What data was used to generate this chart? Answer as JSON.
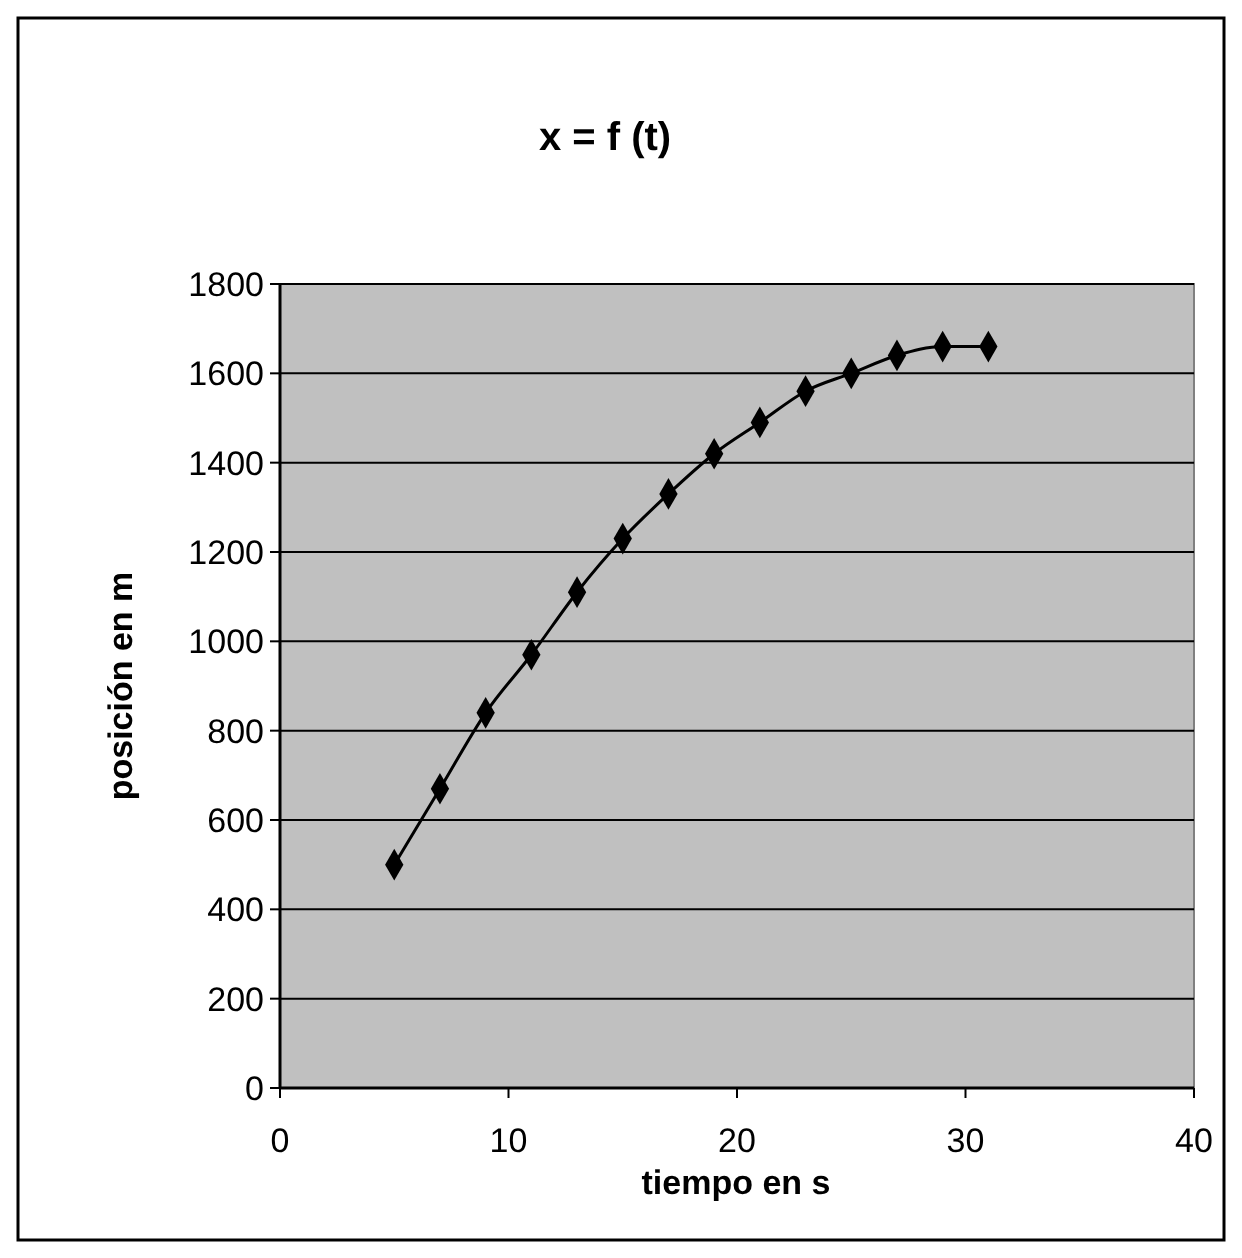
{
  "chart_data": {
    "type": "line",
    "title": "x = f (t)",
    "xlabel": "tiempo en s",
    "ylabel": "posición en m",
    "x": [
      5,
      7,
      9,
      11,
      13,
      15,
      17,
      19,
      21,
      23,
      25,
      27,
      29,
      31
    ],
    "series": [
      {
        "color": "#000000",
        "values": [
          500,
          670,
          840,
          970,
          1110,
          1230,
          1330,
          1420,
          1490,
          1560,
          1600,
          1640,
          1660,
          1660
        ]
      }
    ],
    "xlim": [
      0,
      40
    ],
    "xticks": [
      0,
      10,
      20,
      30,
      40
    ],
    "ylim": [
      0,
      1800
    ],
    "yticks": [
      0,
      200,
      400,
      600,
      800,
      1000,
      1200,
      1400,
      1600,
      1800
    ],
    "grid": "y",
    "marker": "diamond",
    "line_style": "solid"
  }
}
